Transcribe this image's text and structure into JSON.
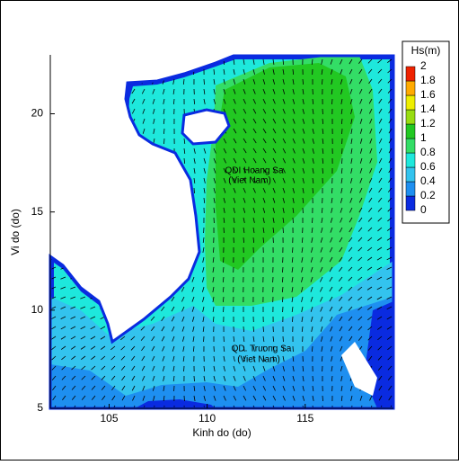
{
  "chart_data": {
    "type": "contour",
    "xlabel": "Kinh do (do)",
    "ylabel": "Vi do (do)",
    "xlim": [
      102,
      119.5
    ],
    "ylim": [
      5,
      23
    ],
    "xticks": [
      105,
      110,
      115
    ],
    "yticks": [
      5,
      10,
      15,
      20
    ],
    "colorbar": {
      "label": "Hs(m)",
      "levels": [
        0,
        0.2,
        0.4,
        0.6,
        0.8,
        1,
        1.2,
        1.4,
        1.6,
        1.8,
        2
      ],
      "colors": [
        "#0a2be0",
        "#1e8ff0",
        "#33c3ee",
        "#1ee8dc",
        "#33dd66",
        "#22c822",
        "#99dd11",
        "#eeee00",
        "#ffaa00",
        "#ee2200"
      ]
    },
    "annotations": [
      "QDI Hoang Sa",
      "(Viet Nam)",
      "QD. Truong Sa",
      "(Viet Nam)"
    ]
  }
}
